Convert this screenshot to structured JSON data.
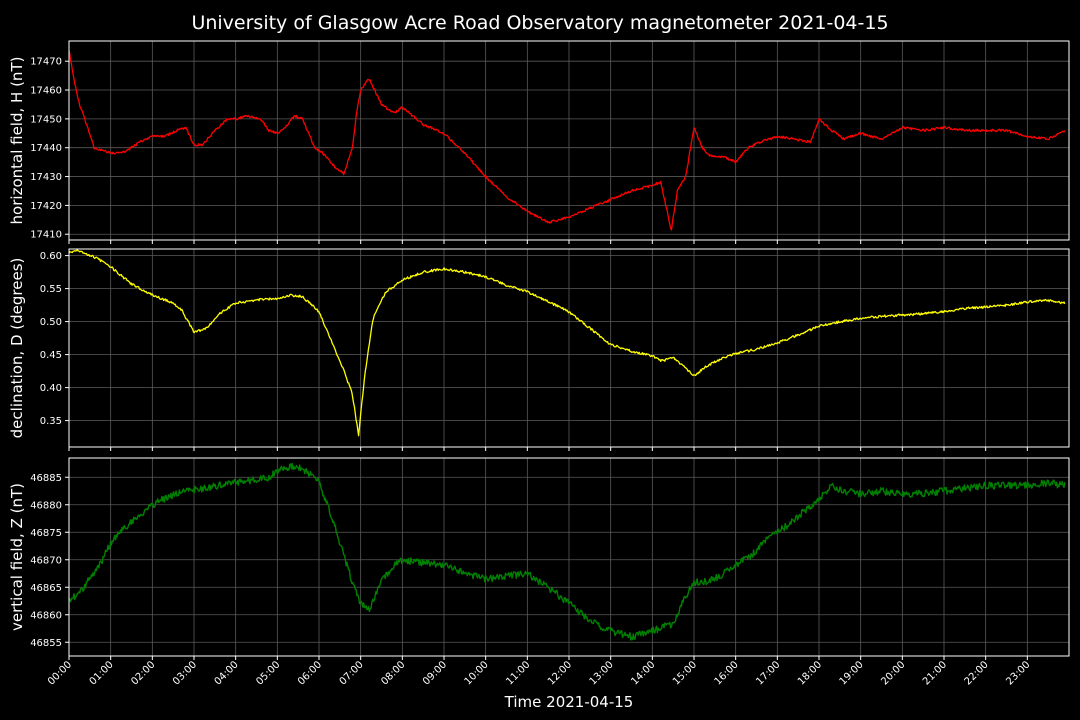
{
  "chart_data": {
    "title": "University of Glasgow Acre Road Observatory magnetometer 2021-04-15",
    "xlabel": "Time 2021-04-15",
    "x_ticks": [
      "00:00",
      "01:00",
      "02:00",
      "03:00",
      "04:00",
      "05:00",
      "06:00",
      "07:00",
      "08:00",
      "09:00",
      "10:00",
      "11:00",
      "12:00",
      "13:00",
      "14:00",
      "15:00",
      "16:00",
      "17:00",
      "18:00",
      "19:00",
      "20:00",
      "21:00",
      "22:00",
      "23:00"
    ],
    "xlim_hours": [
      0,
      24
    ],
    "grid": true,
    "panels": [
      {
        "type": "line",
        "ylabel": "horizontal field, H (nT)",
        "color": "#ff0000",
        "ylim": [
          17408,
          17477
        ],
        "y_ticks": [
          17410,
          17420,
          17430,
          17440,
          17450,
          17460,
          17470
        ],
        "x_hours": [
          0,
          0.1,
          0.25,
          0.45,
          0.6,
          0.8,
          1.1,
          1.4,
          1.7,
          2.0,
          2.3,
          2.6,
          2.8,
          3.0,
          3.2,
          3.5,
          3.8,
          4.0,
          4.3,
          4.6,
          4.8,
          5.0,
          5.2,
          5.4,
          5.6,
          5.9,
          6.1,
          6.4,
          6.6,
          6.8,
          6.9,
          7.0,
          7.2,
          7.5,
          7.8,
          8.0,
          8.5,
          9.0,
          9.5,
          10.0,
          10.5,
          11.0,
          11.5,
          12.0,
          12.5,
          13.0,
          13.5,
          14.0,
          14.2,
          14.4,
          14.45,
          14.6,
          14.8,
          15.0,
          15.2,
          15.4,
          15.7,
          16.0,
          16.3,
          16.6,
          17.0,
          17.4,
          17.8,
          18.0,
          18.3,
          18.6,
          19.0,
          19.5,
          20.0,
          20.5,
          21.0,
          21.5,
          22.0,
          22.5,
          23.0,
          23.5,
          23.9
        ],
        "y": [
          17474,
          17465,
          17455,
          17447,
          17440,
          17439,
          17438,
          17439,
          17442,
          17444,
          17444,
          17446,
          17447,
          17441,
          17441,
          17446,
          17450,
          17450,
          17451,
          17450,
          17446,
          17445,
          17447,
          17451,
          17450,
          17440,
          17438,
          17433,
          17431,
          17440,
          17452,
          17460,
          17464,
          17455,
          17452,
          17454,
          17448,
          17445,
          17438,
          17430,
          17423,
          17418,
          17414,
          17416,
          17419,
          17422,
          17425,
          17427,
          17428,
          17415,
          17411,
          17425,
          17430,
          17447,
          17440,
          17437,
          17437,
          17435,
          17440,
          17442,
          17444,
          17443,
          17442,
          17450,
          17446,
          17443,
          17445,
          17443,
          17447,
          17446,
          17447,
          17446,
          17446,
          17446,
          17444,
          17443,
          17446
        ]
      },
      {
        "type": "line",
        "ylabel": "declination, D (degrees)",
        "color": "#ffff00",
        "ylim": [
          0.31,
          0.61
        ],
        "y_ticks": [
          0.35,
          0.4,
          0.45,
          0.5,
          0.55,
          0.6
        ],
        "x_hours": [
          0,
          0.2,
          0.4,
          0.7,
          1.0,
          1.5,
          2.0,
          2.5,
          2.7,
          3.0,
          3.3,
          3.6,
          4.0,
          4.5,
          5.0,
          5.3,
          5.6,
          6.0,
          6.3,
          6.6,
          6.8,
          6.95,
          7.1,
          7.3,
          7.6,
          8.0,
          8.5,
          9.0,
          9.5,
          10.0,
          10.5,
          11.0,
          11.5,
          12.0,
          12.5,
          13.0,
          13.5,
          14.0,
          14.2,
          14.5,
          14.7,
          15.0,
          15.3,
          15.6,
          16.0,
          16.5,
          17.0,
          17.5,
          18.0,
          18.5,
          19.0,
          19.5,
          20.0,
          20.5,
          21.0,
          21.5,
          22.0,
          22.5,
          23.0,
          23.5,
          23.9
        ],
        "y": [
          0.605,
          0.608,
          0.603,
          0.595,
          0.583,
          0.557,
          0.54,
          0.528,
          0.518,
          0.484,
          0.49,
          0.512,
          0.528,
          0.533,
          0.535,
          0.54,
          0.538,
          0.515,
          0.47,
          0.425,
          0.39,
          0.328,
          0.42,
          0.505,
          0.545,
          0.563,
          0.575,
          0.58,
          0.575,
          0.568,
          0.555,
          0.545,
          0.53,
          0.515,
          0.49,
          0.465,
          0.455,
          0.448,
          0.44,
          0.445,
          0.435,
          0.418,
          0.432,
          0.442,
          0.452,
          0.458,
          0.468,
          0.48,
          0.493,
          0.5,
          0.505,
          0.508,
          0.51,
          0.512,
          0.515,
          0.52,
          0.522,
          0.525,
          0.53,
          0.532,
          0.528
        ]
      },
      {
        "type": "line",
        "ylabel": "vertical field, Z (nT)",
        "color": "#008000",
        "ylim": [
          46852.5,
          46888.5
        ],
        "y_ticks": [
          46855,
          46860,
          46865,
          46870,
          46875,
          46880,
          46885
        ],
        "x_hours": [
          0,
          0.25,
          0.5,
          0.8,
          1.0,
          1.3,
          1.6,
          2.0,
          2.4,
          2.8,
          3.2,
          3.6,
          4.0,
          4.4,
          4.8,
          5.0,
          5.3,
          5.6,
          5.8,
          6.0,
          6.3,
          6.5,
          6.8,
          7.0,
          7.2,
          7.5,
          7.8,
          8.0,
          8.5,
          9.0,
          9.5,
          10.0,
          10.5,
          11.0,
          11.5,
          12.0,
          12.5,
          13.0,
          13.5,
          14.0,
          14.3,
          14.5,
          14.7,
          15.0,
          15.3,
          15.6,
          16.0,
          16.4,
          16.8,
          17.2,
          17.6,
          18.0,
          18.3,
          18.6,
          19.0,
          19.5,
          20.0,
          20.5,
          21.0,
          21.5,
          22.0,
          22.5,
          23.0,
          23.5,
          23.9
        ],
        "y": [
          46862.5,
          46864,
          46866.5,
          46870,
          46873,
          46875.5,
          46877.5,
          46880,
          46881.5,
          46882.5,
          46883,
          46883.5,
          46884,
          46884.5,
          46885,
          46886,
          46887,
          46886.5,
          46885.5,
          46884,
          46878,
          46873,
          46866,
          46862,
          46861,
          46866,
          46869,
          46870,
          46869.5,
          46869,
          46867.5,
          46866.5,
          46867,
          46867.5,
          46865,
          46862,
          46859,
          46857,
          46856,
          46857,
          46858,
          46858,
          46862,
          46866,
          46866,
          46867,
          46869,
          46871,
          46874,
          46876,
          46878.5,
          46881,
          46883.5,
          46882.5,
          46882,
          46882.5,
          46882,
          46882,
          46882.5,
          46883,
          46883.5,
          46883.5,
          46883.5,
          46884,
          46883.5
        ]
      }
    ]
  }
}
